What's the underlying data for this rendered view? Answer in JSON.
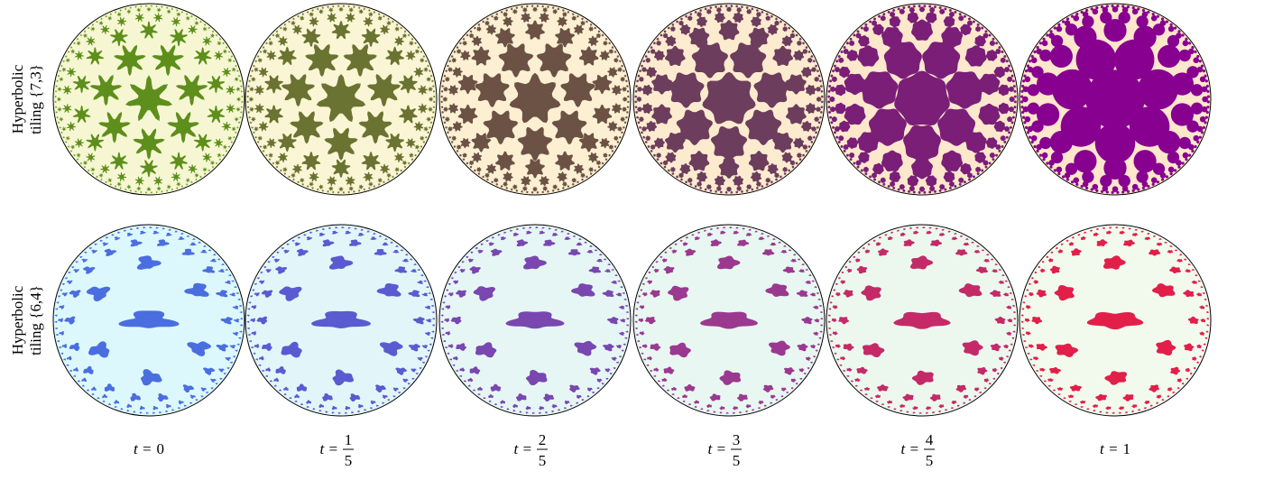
{
  "figure": {
    "rows": [
      {
        "label_lines": [
          "Hyperbolic",
          "tiling {7,3}"
        ],
        "shape": "star",
        "fills": [
          "#5e8f1c",
          "#6a7331",
          "#6b5245",
          "#6c3d5c",
          "#7a1e78",
          "#880090"
        ],
        "backgrounds": [
          "#f6f7d2",
          "#faf5d4",
          "#fcefd2",
          "#fdebcf",
          "#fee8cc",
          "#ffe7cb"
        ]
      },
      {
        "label_lines": [
          "Hyperbolic",
          "tiling {6,4}"
        ],
        "shape": "blob",
        "fills": [
          "#4a6ee0",
          "#5b5ad0",
          "#7a46b0",
          "#9b3990",
          "#c42a68",
          "#e21f48"
        ],
        "backgrounds": [
          "#ddf8fc",
          "#e2f6f9",
          "#e5f6f5",
          "#e8f7f1",
          "#ecf8ee",
          "#f2faee"
        ]
      }
    ],
    "columns": [
      {
        "lhs": "t =",
        "value": "0"
      },
      {
        "lhs": "t =",
        "num": "1",
        "den": "5"
      },
      {
        "lhs": "t =",
        "num": "2",
        "den": "5"
      },
      {
        "lhs": "t =",
        "num": "3",
        "den": "5"
      },
      {
        "lhs": "t =",
        "num": "4",
        "den": "5"
      },
      {
        "lhs": "t =",
        "value": "1"
      }
    ]
  }
}
